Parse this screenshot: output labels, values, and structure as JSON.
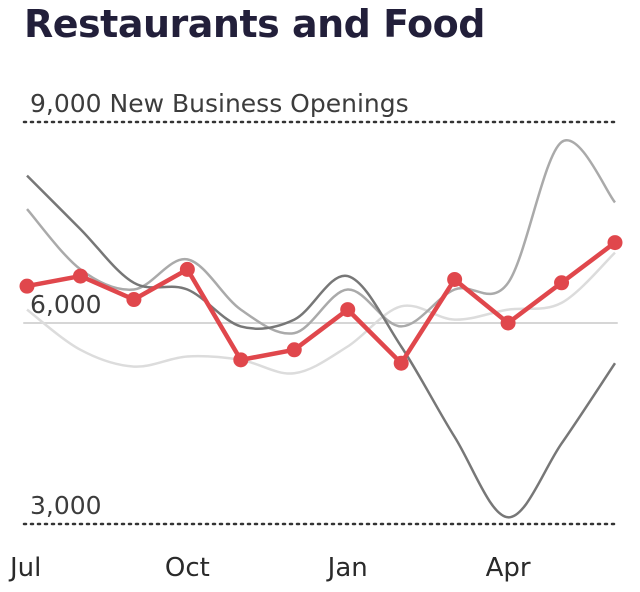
{
  "title": "Restaurants and Food",
  "chart_data": {
    "type": "line",
    "title": "Restaurants and Food",
    "ylabel": "New Business Openings",
    "ylim": [
      3000,
      9000
    ],
    "y_ticks": [
      {
        "value": 9000,
        "label": "9,000 New Business Openings",
        "style": "dotted"
      },
      {
        "value": 6000,
        "label": "6,000",
        "style": "solid"
      },
      {
        "value": 3000,
        "label": "3,000",
        "style": "dotted"
      }
    ],
    "x_ticks": [
      {
        "x": 0,
        "label": "Jul"
      },
      {
        "x": 3,
        "label": "Oct"
      },
      {
        "x": 6,
        "label": "Jan"
      },
      {
        "x": 9,
        "label": "Apr"
      }
    ],
    "x": [
      0,
      1,
      2,
      3,
      4,
      5,
      6,
      7,
      8,
      9,
      10,
      11
    ],
    "grid": false,
    "legend": "none",
    "series": [
      {
        "role": "background",
        "color": "#dcdcdc",
        "values": [
          6200,
          5600,
          5350,
          5500,
          5450,
          5250,
          5650,
          6250,
          6050,
          6200,
          6300,
          7050
        ]
      },
      {
        "role": "background",
        "color": "#aaaaaa",
        "values": [
          7700,
          6800,
          6500,
          6950,
          6200,
          5850,
          6500,
          5950,
          6500,
          6600,
          8700,
          7800
        ]
      },
      {
        "role": "background",
        "color": "#777777",
        "values": [
          8200,
          7400,
          6600,
          6500,
          5950,
          6050,
          6700,
          5650,
          4300,
          3100,
          4200,
          5400
        ]
      },
      {
        "role": "highlight",
        "color": "#e0474c",
        "values": [
          6550,
          6700,
          6350,
          6800,
          5450,
          5600,
          6200,
          5400,
          6650,
          6000,
          6600,
          7200
        ]
      }
    ]
  }
}
